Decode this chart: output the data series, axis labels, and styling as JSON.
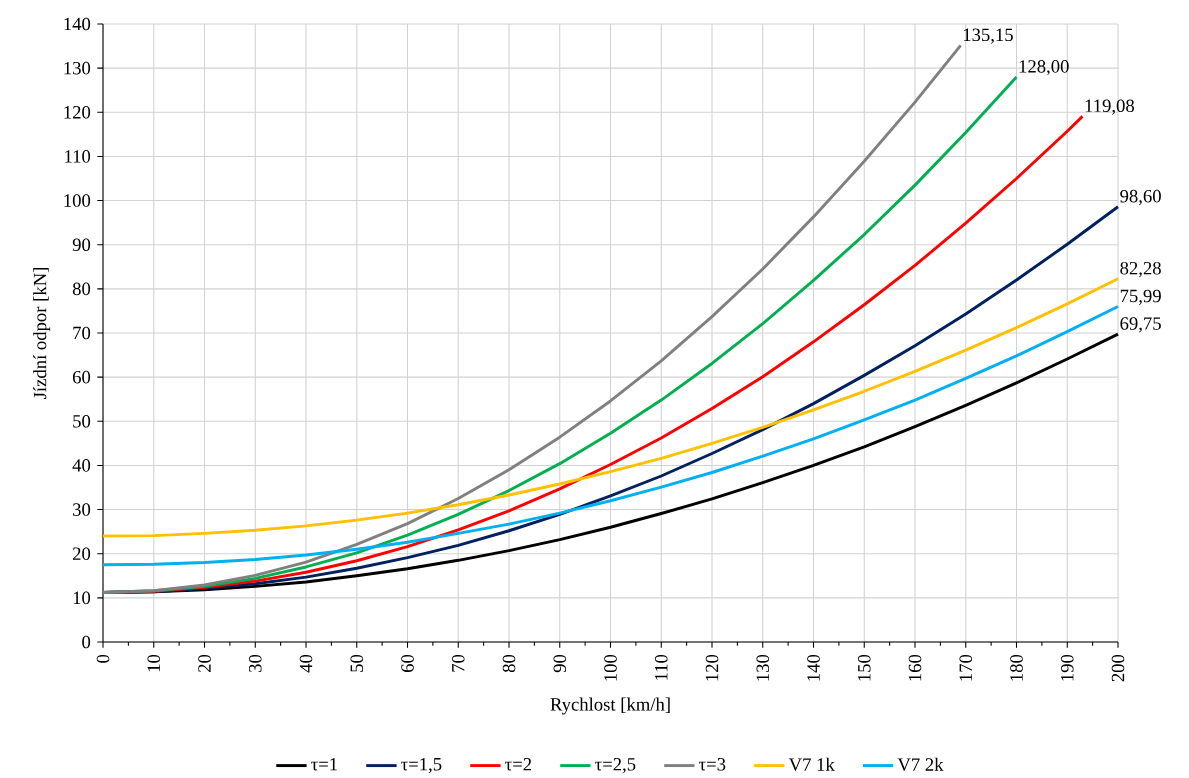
{
  "chart_data": {
    "type": "line",
    "xlabel": "Rychlost [km/h]",
    "ylabel": "Jízdní odpor [kN]",
    "xlim": [
      0,
      200
    ],
    "ylim": [
      0,
      140
    ],
    "xticks": [
      0,
      10,
      20,
      30,
      40,
      50,
      60,
      70,
      80,
      90,
      100,
      110,
      120,
      130,
      140,
      150,
      160,
      170,
      180,
      190,
      200
    ],
    "yticks": [
      0,
      10,
      20,
      30,
      40,
      50,
      60,
      70,
      80,
      90,
      100,
      110,
      120,
      130,
      140
    ],
    "grid": true,
    "legend": "bottom",
    "marker": "none",
    "line_style": "solid",
    "series": [
      {
        "name": "τ=1",
        "color": "#000000",
        "x": [
          0,
          10,
          20,
          30,
          40,
          50,
          60,
          70,
          80,
          90,
          100,
          110,
          120,
          130,
          140,
          150,
          160,
          170,
          180,
          190,
          200
        ],
        "values": [
          11.2,
          11.4,
          11.8,
          12.6,
          13.6,
          15.0,
          16.6,
          18.5,
          20.7,
          23.2,
          26.0,
          29.1,
          32.4,
          36.1,
          40.0,
          44.2,
          48.8,
          53.6,
          58.7,
          64.1,
          69.75
        ]
      },
      {
        "name": "τ=1,5",
        "color": "#002060",
        "x": [
          0,
          10,
          20,
          30,
          40,
          50,
          60,
          70,
          80,
          90,
          100,
          110,
          120,
          130,
          140,
          150,
          160,
          170,
          180,
          190,
          200
        ],
        "values": [
          11.2,
          11.4,
          12.1,
          13.2,
          14.7,
          16.7,
          19.1,
          21.9,
          25.2,
          28.9,
          33.1,
          37.6,
          42.7,
          48.1,
          54.0,
          60.4,
          67.1,
          74.3,
          82.0,
          90.1,
          98.6
        ]
      },
      {
        "name": "τ=2",
        "color": "#ff0000",
        "x": [
          0,
          10,
          20,
          30,
          40,
          50,
          60,
          70,
          80,
          90,
          100,
          110,
          120,
          130,
          140,
          150,
          160,
          170,
          180,
          190,
          193
        ],
        "values": [
          11.2,
          11.5,
          12.4,
          13.8,
          15.8,
          18.4,
          21.6,
          25.4,
          29.7,
          34.7,
          40.2,
          46.2,
          52.9,
          60.1,
          68.0,
          76.4,
          85.3,
          94.9,
          105.0,
          115.7,
          119.08
        ]
      },
      {
        "name": "τ=2,5",
        "color": "#00b050",
        "x": [
          0,
          10,
          20,
          30,
          40,
          50,
          60,
          70,
          80,
          90,
          100,
          110,
          120,
          130,
          140,
          150,
          160,
          170,
          180
        ],
        "values": [
          11.2,
          11.6,
          12.6,
          14.4,
          17.0,
          20.2,
          24.2,
          28.9,
          34.3,
          40.4,
          47.3,
          54.8,
          63.1,
          72.1,
          81.9,
          92.3,
          103.5,
          115.4,
          128.0
        ]
      },
      {
        "name": "τ=3",
        "color": "#808080",
        "x": [
          0,
          10,
          20,
          30,
          40,
          50,
          60,
          70,
          80,
          90,
          100,
          110,
          120,
          130,
          140,
          150,
          160,
          169
        ],
        "values": [
          11.2,
          11.6,
          12.9,
          15.1,
          18.1,
          22.1,
          26.8,
          32.5,
          39.0,
          46.4,
          54.6,
          63.7,
          73.7,
          84.5,
          96.3,
          108.9,
          122.3,
          135.15
        ]
      },
      {
        "name": "V7 1k",
        "color": "#ffc000",
        "x": [
          0,
          10,
          20,
          30,
          40,
          50,
          60,
          70,
          80,
          90,
          100,
          110,
          120,
          130,
          140,
          150,
          160,
          170,
          180,
          190,
          200
        ],
        "values": [
          24.0,
          24.1,
          24.6,
          25.3,
          26.3,
          27.6,
          29.2,
          31.1,
          33.3,
          35.8,
          38.6,
          41.6,
          45.0,
          48.6,
          52.6,
          56.8,
          61.3,
          66.1,
          71.2,
          76.6,
          82.28
        ]
      },
      {
        "name": "V7 2k",
        "color": "#00b0f0",
        "x": [
          0,
          10,
          20,
          30,
          40,
          50,
          60,
          70,
          80,
          90,
          100,
          110,
          120,
          130,
          140,
          150,
          160,
          170,
          180,
          190,
          200
        ],
        "values": [
          17.5,
          17.6,
          18.0,
          18.7,
          19.7,
          21.0,
          22.6,
          24.6,
          26.7,
          29.2,
          32.0,
          35.1,
          38.4,
          42.1,
          46.0,
          50.3,
          54.8,
          59.7,
          64.8,
          70.3,
          75.99
        ]
      }
    ],
    "annotations": [
      {
        "text": "135,15",
        "x": 169,
        "y": 135.15
      },
      {
        "text": "128,00",
        "x": 180,
        "y": 128.0
      },
      {
        "text": "119,08",
        "x": 193,
        "y": 119.08
      },
      {
        "text": "98,60",
        "x": 200,
        "y": 98.6
      },
      {
        "text": "82,28",
        "x": 200,
        "y": 82.28
      },
      {
        "text": "75,99",
        "x": 200,
        "y": 75.99
      },
      {
        "text": "69,75",
        "x": 200,
        "y": 69.75
      }
    ]
  }
}
